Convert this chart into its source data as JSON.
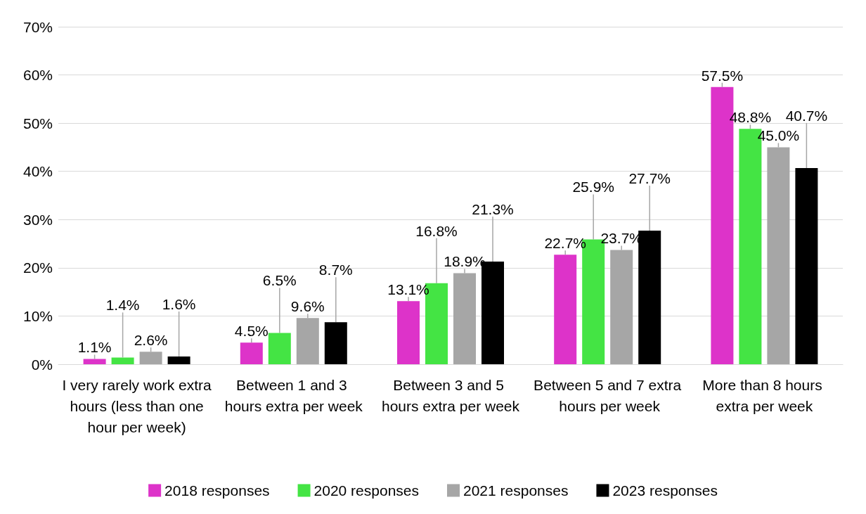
{
  "chart_data": {
    "type": "bar",
    "categories": [
      "I very rarely work extra hours (less than one hour per week)",
      "Between 1 and 3 hours extra per week",
      "Between 3 and 5 hours extra per week",
      "Between 5 and 7 extra hours per week",
      "More than 8 hours extra per week"
    ],
    "series": [
      {
        "name": "2018 responses",
        "color": "#dd33c9",
        "values": [
          1.1,
          4.5,
          13.1,
          22.7,
          57.5
        ],
        "value_labels": [
          "1.1%",
          "4.5%",
          "13.1%",
          "22.7%",
          "57.5%"
        ]
      },
      {
        "name": "2020 responses",
        "color": "#44e444",
        "values": [
          1.4,
          6.5,
          16.8,
          25.9,
          48.8
        ],
        "value_labels": [
          "1.4%",
          "6.5%",
          "16.8%",
          "25.9%",
          "48.8%"
        ]
      },
      {
        "name": "2021 responses",
        "color": "#a6a6a6",
        "values": [
          2.6,
          9.6,
          18.9,
          23.7,
          45.0
        ],
        "value_labels": [
          "2.6%",
          "9.6%",
          "18.9%",
          "23.7%",
          "45.0%"
        ]
      },
      {
        "name": "2023 responses",
        "color": "#000000",
        "values": [
          1.6,
          8.7,
          21.3,
          27.7,
          40.7
        ],
        "value_labels": [
          "1.6%",
          "8.7%",
          "21.3%",
          "27.7%",
          "40.7%"
        ]
      }
    ],
    "ylim": [
      0,
      70
    ],
    "yticks": [
      {
        "value": 0,
        "label": "0%"
      },
      {
        "value": 10,
        "label": "10%"
      },
      {
        "value": 20,
        "label": "20%"
      },
      {
        "value": 30,
        "label": "30%"
      },
      {
        "value": 40,
        "label": "40%"
      },
      {
        "value": 50,
        "label": "50%"
      },
      {
        "value": 60,
        "label": "60%"
      },
      {
        "value": 70,
        "label": "70%"
      }
    ],
    "grid": "y",
    "legend": "bottom"
  }
}
